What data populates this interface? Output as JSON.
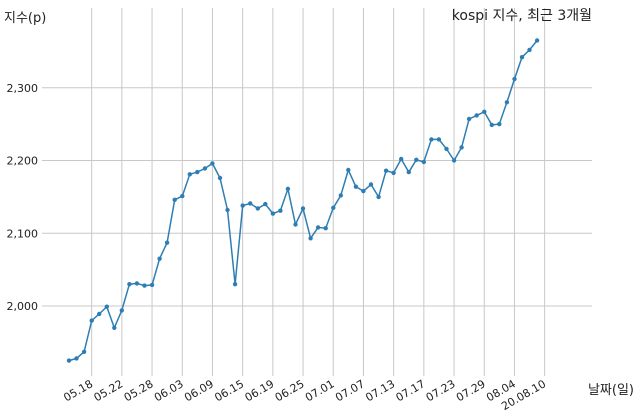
{
  "chart_data": {
    "type": "line",
    "title": "kospi 지수, 최근 3개월",
    "ylabel": "지수(p)",
    "xlabel": "날짜(일)",
    "ylim": [
      1910,
      2380
    ],
    "grid": true,
    "line_color": "#2e7eb4",
    "yticks": [
      {
        "value": 2000,
        "label": "2,000"
      },
      {
        "value": 2100,
        "label": "2,100"
      },
      {
        "value": 2200,
        "label": "2,200"
      },
      {
        "value": 2300,
        "label": "2,300"
      }
    ],
    "xticks": [
      {
        "index": 3,
        "label": "05.18"
      },
      {
        "index": 7,
        "label": "05.22"
      },
      {
        "index": 11,
        "label": "05.28"
      },
      {
        "index": 15,
        "label": "06.03"
      },
      {
        "index": 19,
        "label": "06.09"
      },
      {
        "index": 23,
        "label": "06.15"
      },
      {
        "index": 27,
        "label": "06.19"
      },
      {
        "index": 31,
        "label": "06.25"
      },
      {
        "index": 35,
        "label": "07.01"
      },
      {
        "index": 39,
        "label": "07.07"
      },
      {
        "index": 43,
        "label": "07.13"
      },
      {
        "index": 47,
        "label": "07.17"
      },
      {
        "index": 51,
        "label": "07.23"
      },
      {
        "index": 55,
        "label": "07.29"
      },
      {
        "index": 59,
        "label": "08.04"
      },
      {
        "index": 63,
        "label": "20.08.10"
      }
    ],
    "values": [
      1925,
      1928,
      1937,
      1980,
      1989,
      1999,
      1970,
      1994,
      2030,
      2031,
      2028,
      2029,
      2065,
      2087,
      2146,
      2151,
      2181,
      2184,
      2189,
      2196,
      2176,
      2132,
      2030,
      2138,
      2141,
      2134,
      2140,
      2127,
      2131,
      2161,
      2112,
      2134,
      2093,
      2108,
      2107,
      2135,
      2152,
      2187,
      2164,
      2158,
      2167,
      2150,
      2186,
      2183,
      2202,
      2184,
      2201,
      2198,
      2229,
      2229,
      2216,
      2200,
      2218,
      2257,
      2262,
      2267,
      2249,
      2250,
      2280,
      2312,
      2342,
      2352,
      2365
    ]
  }
}
